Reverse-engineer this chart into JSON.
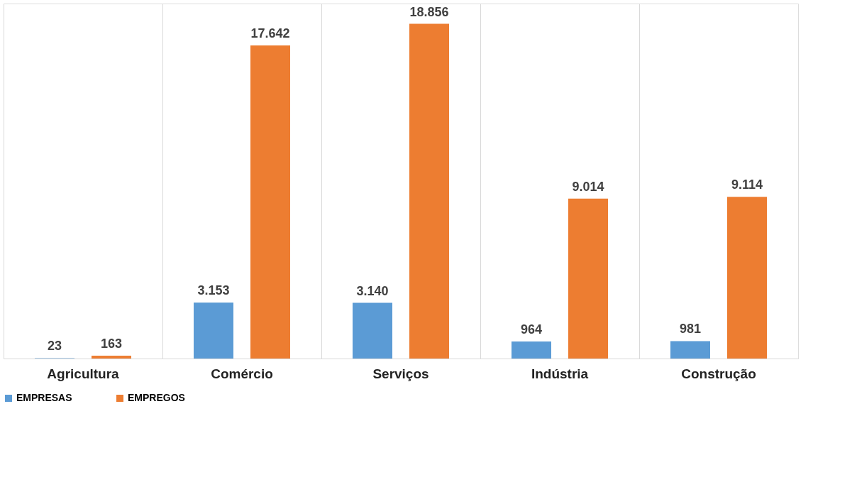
{
  "chart_data": {
    "type": "bar",
    "categories": [
      "Agricultura",
      "Comércio",
      "Serviços",
      "Indústria",
      "Construção"
    ],
    "series": [
      {
        "name": "EMPRESAS",
        "color": "#5b9bd5",
        "values": [
          23,
          3153,
          3140,
          964,
          981
        ],
        "value_labels": [
          "23",
          "3.153",
          "3.140",
          "964",
          "981"
        ]
      },
      {
        "name": "EMPREGOS",
        "color": "#ed7d31",
        "values": [
          163,
          17642,
          18856,
          9014,
          9114
        ],
        "value_labels": [
          "163",
          "17.642",
          "18.856",
          "9.014",
          "9.114"
        ]
      }
    ],
    "grid": "x",
    "legend": "bottom",
    "tick_labels": "x"
  }
}
